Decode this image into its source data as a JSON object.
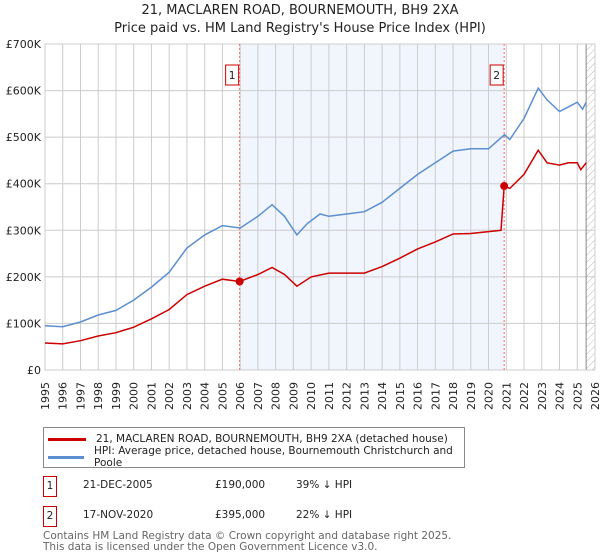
{
  "chart_data": {
    "type": "line",
    "title": "21, MACLAREN ROAD, BOURNEMOUTH, BH9 2XA",
    "subtitle": "Price paid vs. HM Land Registry's House Price Index (HPI)",
    "xlim": [
      1995,
      2026
    ],
    "ylim": [
      0,
      700000
    ],
    "y_ticks": [
      {
        "v": 0,
        "label": "£0"
      },
      {
        "v": 100000,
        "label": "£100K"
      },
      {
        "v": 200000,
        "label": "£200K"
      },
      {
        "v": 300000,
        "label": "£300K"
      },
      {
        "v": 400000,
        "label": "£400K"
      },
      {
        "v": 500000,
        "label": "£500K"
      },
      {
        "v": 600000,
        "label": "£600K"
      },
      {
        "v": 700000,
        "label": "£700K"
      }
    ],
    "x_ticks": [
      "1995",
      "1996",
      "1997",
      "1998",
      "1999",
      "2000",
      "2001",
      "2002",
      "2003",
      "2004",
      "2005",
      "2006",
      "2007",
      "2008",
      "2009",
      "2010",
      "2011",
      "2012",
      "2013",
      "2014",
      "2015",
      "2016",
      "2017",
      "2018",
      "2019",
      "2020",
      "2021",
      "2022",
      "2023",
      "2024",
      "2025",
      "2026"
    ],
    "grid": true,
    "shaded_range": [
      2005.97,
      2020.88
    ],
    "hatched_from": 2025.5,
    "series": [
      {
        "name": "21, MACLAREN ROAD, BOURNEMOUTH, BH9 2XA (detached house)",
        "color": "#cc0000",
        "x": [
          1995,
          1996,
          1997,
          1998,
          1999,
          2000,
          2001,
          2002,
          2003,
          2004,
          2005,
          2005.97,
          2007,
          2007.8,
          2008.5,
          2009.2,
          2010,
          2011,
          2012,
          2013,
          2014,
          2015,
          2016,
          2017,
          2018,
          2019,
          2020.7,
          2020.88,
          2021.2,
          2022,
          2022.8,
          2023.3,
          2024,
          2024.5,
          2025,
          2025.2,
          2025.5
        ],
        "y": [
          58000,
          56000,
          63000,
          73000,
          80000,
          92000,
          110000,
          130000,
          162000,
          180000,
          195000,
          190000,
          205000,
          220000,
          205000,
          180000,
          200000,
          208000,
          208000,
          208000,
          222000,
          240000,
          260000,
          275000,
          292000,
          293000,
          300000,
          395000,
          390000,
          420000,
          472000,
          445000,
          440000,
          445000,
          445000,
          430000,
          445000
        ]
      },
      {
        "name": "HPI: Average price, detached house, Bournemouth Christchurch and Poole",
        "color": "#5b8fd0",
        "x": [
          1995,
          1996,
          1997,
          1998,
          1999,
          2000,
          2001,
          2002,
          2003,
          2004,
          2005,
          2006,
          2007,
          2007.8,
          2008.5,
          2009.2,
          2009.8,
          2010.5,
          2011,
          2012,
          2013,
          2014,
          2015,
          2016,
          2017,
          2018,
          2019,
          2020,
          2020.9,
          2021.2,
          2022,
          2022.8,
          2023.3,
          2024,
          2024.5,
          2025,
          2025.3,
          2025.5
        ],
        "y": [
          95000,
          93000,
          103000,
          118000,
          128000,
          150000,
          178000,
          210000,
          262000,
          290000,
          310000,
          305000,
          330000,
          355000,
          330000,
          290000,
          315000,
          335000,
          330000,
          335000,
          340000,
          360000,
          390000,
          420000,
          445000,
          470000,
          475000,
          475000,
          505000,
          495000,
          540000,
          605000,
          580000,
          555000,
          565000,
          575000,
          560000,
          575000
        ]
      }
    ],
    "sales": [
      {
        "label": "1",
        "x": 2005.97,
        "y": 190000
      },
      {
        "label": "2",
        "x": 2020.88,
        "y": 395000
      }
    ]
  },
  "legend": {
    "property": "21, MACLAREN ROAD, BOURNEMOUTH, BH9 2XA (detached house)",
    "hpi": "HPI: Average price, detached house, Bournemouth Christchurch and Poole"
  },
  "transactions": [
    {
      "num": "1",
      "date": "21-DEC-2005",
      "price": "£190,000",
      "hpi": "39% ↓ HPI"
    },
    {
      "num": "2",
      "date": "17-NOV-2020",
      "price": "£395,000",
      "hpi": "22% ↓ HPI"
    }
  ],
  "footer": {
    "line1": "Contains HM Land Registry data © Crown copyright and database right 2025.",
    "line2": "This data is licensed under the Open Government Licence v3.0."
  }
}
